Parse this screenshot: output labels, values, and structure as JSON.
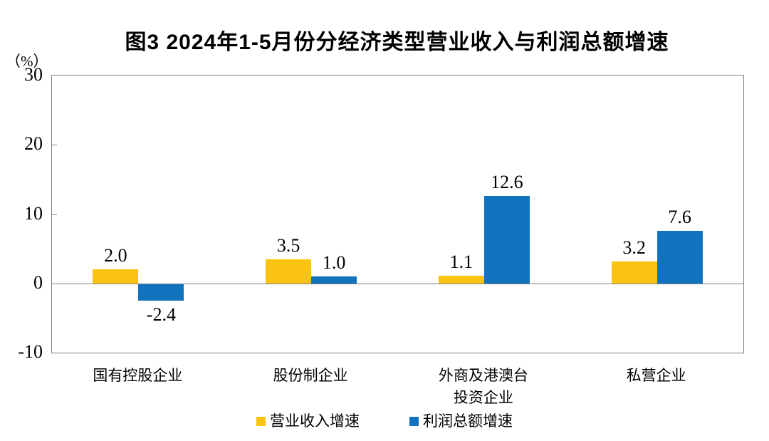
{
  "title": "图3 2024年1-5月份分经济类型营业收入与利润总额增速",
  "axis": {
    "unit_label": "（%）",
    "yticks": [
      30,
      20,
      10,
      0,
      -10
    ]
  },
  "legend": {
    "revenue_label": "营业收入增速",
    "profit_label": "利润总额增速"
  },
  "colors": {
    "revenue": "#FBC311",
    "profit": "#1173BD",
    "axis_line": "#7f7f7f",
    "text": "#000000"
  },
  "chart_data": {
    "type": "bar",
    "title": "图3 2024年1-5月份分经济类型营业收入与利润总额增速",
    "ylabel": "（%）",
    "ylim": [
      -10,
      30
    ],
    "yticks": [
      -10,
      0,
      10,
      20,
      30
    ],
    "grid": false,
    "legend_position": "bottom",
    "categories": [
      "国有控股企业",
      "股份制企业",
      "外商及港澳台\n投资企业",
      "私营企业"
    ],
    "series": [
      {
        "name": "营业收入增速",
        "color": "#FBC311",
        "values": [
          2.0,
          3.5,
          1.1,
          3.2
        ]
      },
      {
        "name": "利润总额增速",
        "color": "#1173BD",
        "values": [
          -2.4,
          1.0,
          12.6,
          7.6
        ]
      }
    ]
  }
}
